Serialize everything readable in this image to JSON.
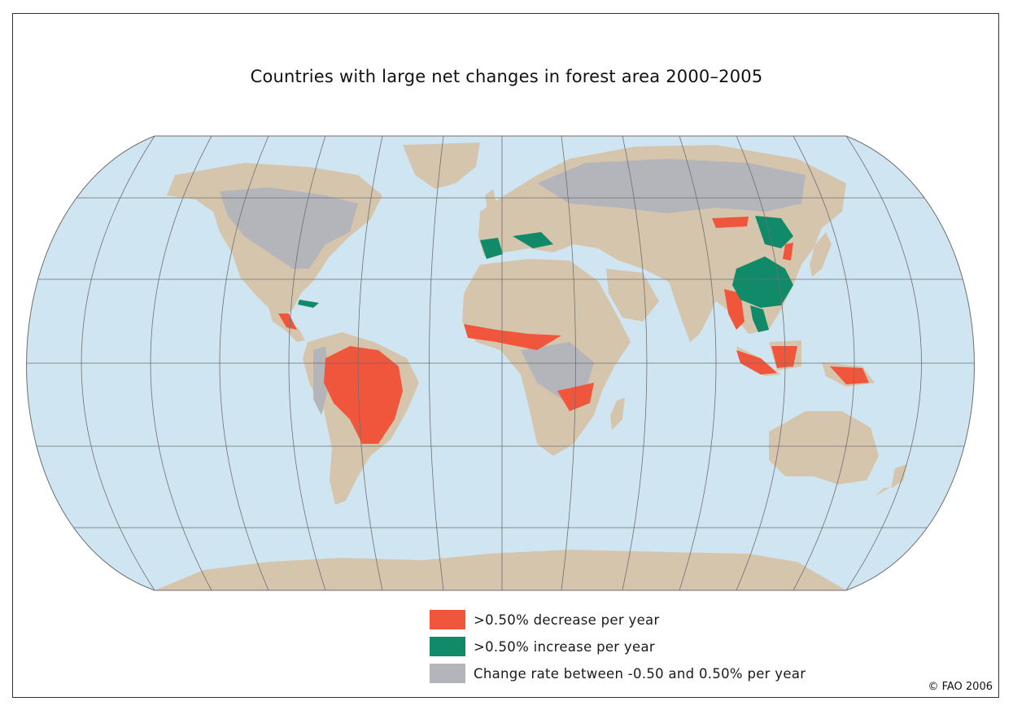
{
  "title": "Countries with large net changes in forest area 2000–2005",
  "legend": [
    {
      "label": ">0.50% decrease per year",
      "color": "#ef563b"
    },
    {
      "label": ">0.50% increase per year",
      "color": "#108a68"
    },
    {
      "label": "Change rate between -0.50 and 0.50% per year",
      "color": "#b4b5bb"
    }
  ],
  "credit": "© FAO 2006",
  "colors": {
    "ocean": "#cfe6f2",
    "land": "#d6c5ad",
    "unchanged_forest": "#b4b5bb",
    "decrease": "#ef563b",
    "increase": "#108a68",
    "graticule": "#6f6f6f"
  }
}
